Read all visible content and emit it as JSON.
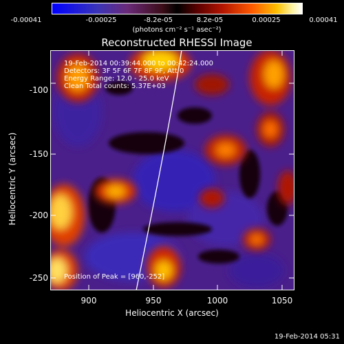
{
  "colorbar": {
    "ticks": [
      "-0.00041",
      "-0.00025",
      "-8.2e-05",
      "8.2e-05",
      "0.00025",
      "0.00041"
    ],
    "units": "(photons cm⁻² s⁻¹ asec⁻²)"
  },
  "title": "Reconstructed RHESSI Image",
  "annotations": {
    "time": "19-Feb-2014 00:39:44.000 to 00:42:24.000",
    "detectors": "Detectors: 3F 5F 6F 7F 8F 9F, Att 0",
    "energy": "Energy Range: 12.0 - 25.0 keV",
    "clean": "Clean     Total counts: 5.37E+03",
    "peak": "Position of Peak = [960,-252]"
  },
  "axes": {
    "xlabel": "Heliocentric X (arcsec)",
    "ylabel": "Heliocentric Y (arcsec)",
    "xticks": [
      "900",
      "950",
      "1000",
      "1050"
    ],
    "yticks": [
      "-100",
      "-150",
      "-200",
      "-250"
    ],
    "xlim": [
      870,
      1060
    ],
    "ylim": [
      -262,
      -74
    ]
  },
  "footer": "19-Feb-2014 05:31",
  "colors": {
    "background": "#000000",
    "text": "#ffffff",
    "limb_line": "#ffffff"
  }
}
